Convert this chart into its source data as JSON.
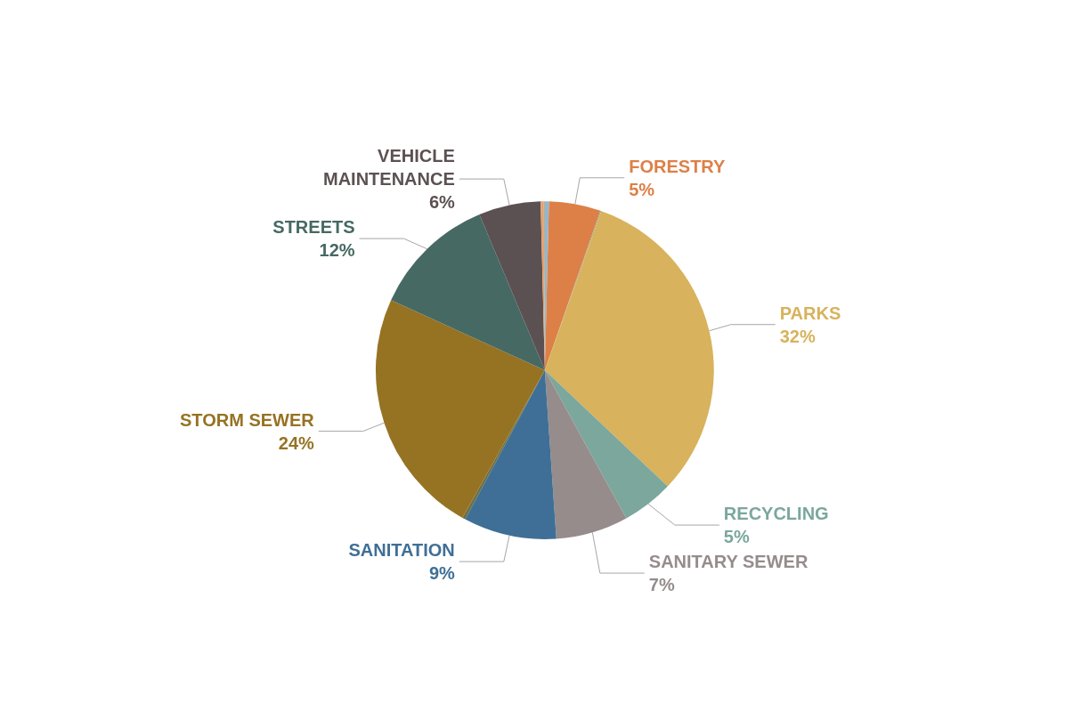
{
  "chart_data": {
    "type": "pie",
    "categories": [
      null,
      "FORESTRY",
      null,
      "PARKS",
      "RECYCLING",
      "SANITARY SEWER",
      "SANITATION",
      null,
      "STORM SEWER",
      "STREETS",
      "VEHICLE\nMAINTENANCE",
      null,
      null
    ],
    "values": [
      0.4,
      5,
      0.1,
      32,
      5,
      7,
      9,
      0.3,
      24,
      12,
      6,
      0.3,
      0.1
    ],
    "value_labels": [
      null,
      "5%",
      null,
      "32%",
      "5%",
      "7%",
      "9%",
      null,
      "24%",
      "12%",
      "6%",
      null,
      null
    ],
    "colors": [
      "#94b6d2",
      "#dd8047",
      "#a5ab81",
      "#d8b25c",
      "#7ba79d",
      "#968c8c",
      "#3f6f96",
      "#6b7046",
      "#967323",
      "#466963",
      "#5c5152",
      "#e8a06c",
      "#a5ab81"
    ],
    "legend": false
  }
}
